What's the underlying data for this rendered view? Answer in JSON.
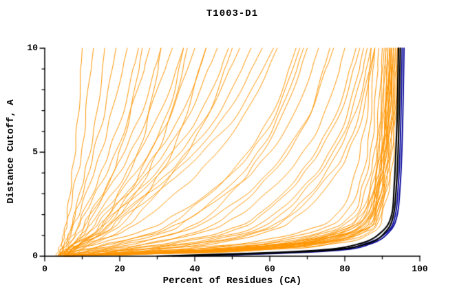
{
  "title": "T1003-D1",
  "colors": {
    "model_orange": "#FF9500",
    "reference_black": "#000000",
    "reference_navy": "#000099",
    "axis": "#000000",
    "background": "#FFFFFF"
  },
  "chart_data": {
    "type": "line",
    "title": "T1003-D1",
    "xlabel": "Percent of Residues (CA)",
    "ylabel": "Distance Cutoff, A",
    "xlim": [
      0,
      100
    ],
    "ylim": [
      0,
      10
    ],
    "grid": false,
    "legend": "none",
    "x_ticks_major": [
      0,
      20,
      40,
      60,
      80,
      100
    ],
    "x_ticks_minor": [
      10,
      30,
      50,
      70,
      90
    ],
    "y_ticks_major": [
      0,
      5,
      10
    ],
    "y_ticks_minor": [
      1,
      2,
      3,
      4,
      6,
      7,
      8,
      9
    ],
    "anchors_y": [
      0,
      0.25,
      0.6,
      1.2,
      2,
      3.5,
      5,
      7,
      10
    ],
    "groups": [
      {
        "name": "model-curves",
        "color": "#FF9500",
        "width": 1,
        "wiggle": 1.2,
        "curves": [
          [
            4,
            4.3,
            4.7,
            5.3,
            6,
            7,
            8,
            9,
            10
          ],
          [
            3,
            3.6,
            4.3,
            5.4,
            6.5,
            8,
            10,
            11,
            13
          ],
          [
            5,
            5.4,
            6,
            7,
            8,
            10,
            12,
            14,
            16
          ],
          [
            4,
            4.6,
            5.4,
            6.8,
            8,
            11,
            13,
            16,
            19
          ],
          [
            3.5,
            4.2,
            5.2,
            7,
            9,
            12,
            15,
            18,
            22
          ],
          [
            5,
            5.8,
            6.8,
            8.6,
            10,
            14,
            17,
            21,
            25
          ],
          [
            4,
            4.8,
            6,
            8.2,
            10.5,
            15,
            19,
            23,
            28
          ],
          [
            6,
            6.8,
            8,
            10.2,
            12,
            17,
            21,
            26,
            31
          ],
          [
            3.5,
            4.5,
            6.2,
            9.5,
            12,
            18,
            23,
            28,
            34
          ],
          [
            5,
            6,
            7.8,
            11,
            14,
            20,
            25,
            31,
            37
          ],
          [
            4.5,
            5.6,
            7.8,
            12,
            15,
            22,
            28,
            34,
            40
          ],
          [
            6,
            7.2,
            9.5,
            13.5,
            17,
            24,
            30,
            37,
            43
          ],
          [
            4,
            5.4,
            8,
            12.5,
            16,
            25,
            32,
            39,
            46
          ],
          [
            5.5,
            6.8,
            9.5,
            14.5,
            18,
            27,
            34,
            42,
            49
          ],
          [
            3.5,
            5,
            8,
            14,
            18.5,
            28,
            36,
            44,
            52
          ],
          [
            6,
            7.5,
            10.5,
            16.5,
            21,
            30,
            38,
            47,
            55
          ],
          [
            5,
            6.6,
            9.8,
            16,
            20,
            31,
            40,
            49,
            58
          ],
          [
            4.5,
            6.4,
            10,
            17,
            22,
            33,
            42,
            52,
            61
          ],
          [
            4,
            6,
            9.5,
            15,
            20,
            26,
            30,
            34,
            38
          ],
          [
            5,
            7,
            11.5,
            18,
            23,
            29,
            34,
            38,
            43
          ],
          [
            3.5,
            5.5,
            9,
            14,
            17,
            21,
            25,
            28,
            31
          ],
          [
            6,
            8.5,
            13,
            20,
            25,
            32,
            38,
            44,
            50
          ],
          [
            4,
            5.5,
            7.5,
            10.5,
            13,
            17,
            20,
            23,
            26
          ],
          [
            5,
            6.8,
            10,
            15.5,
            19,
            24,
            28,
            33,
            37
          ],
          [
            5,
            8,
            14,
            26,
            35,
            47,
            55,
            62,
            68
          ],
          [
            6,
            10,
            18,
            31,
            40,
            52,
            60,
            67,
            73
          ],
          [
            4.5,
            12,
            22,
            37,
            46,
            57,
            64,
            71,
            77
          ],
          [
            5.5,
            14,
            27,
            43,
            52,
            62,
            69,
            75,
            80
          ],
          [
            6,
            17,
            32,
            48,
            57,
            66,
            72,
            78,
            83
          ],
          [
            5,
            20,
            37,
            53,
            61,
            70,
            76,
            81,
            85
          ],
          [
            7,
            23,
            41,
            57,
            65,
            73,
            78,
            83,
            87
          ],
          [
            6,
            26,
            45,
            60,
            68,
            76,
            81,
            85,
            88
          ],
          [
            5,
            13,
            24,
            36,
            44,
            52,
            58,
            64,
            70
          ],
          [
            6.5,
            16,
            28,
            41,
            49,
            58,
            65,
            71,
            76
          ],
          [
            4,
            11,
            20,
            33,
            40,
            50,
            57,
            63,
            69
          ],
          [
            5.5,
            18,
            34,
            50,
            58,
            67,
            73,
            79,
            84
          ],
          [
            7,
            21,
            39,
            55,
            63,
            71,
            77,
            82,
            86
          ],
          [
            4.5,
            9,
            17,
            30,
            37,
            47,
            54,
            61,
            67
          ],
          [
            6,
            25,
            43,
            58,
            66,
            74,
            80,
            84,
            88
          ],
          [
            5,
            7.5,
            12,
            21,
            28,
            38,
            46,
            54,
            62
          ],
          [
            5,
            30,
            55,
            72,
            80,
            84,
            86,
            87,
            88
          ],
          [
            6,
            34,
            60,
            76,
            83,
            86,
            88,
            89,
            90
          ],
          [
            5.5,
            38,
            64,
            79,
            85,
            88,
            89,
            90,
            91
          ],
          [
            7,
            42,
            68,
            82,
            87,
            89,
            90,
            91,
            92
          ],
          [
            6,
            46,
            71,
            84,
            88,
            90,
            91,
            92,
            93
          ],
          [
            5,
            50,
            74,
            86,
            89,
            91,
            92,
            93,
            94
          ],
          [
            6.5,
            40,
            66,
            80.5,
            86,
            88.5,
            90,
            91,
            92
          ],
          [
            5,
            36,
            62,
            77.5,
            84,
            87,
            88.5,
            89.5,
            90.5
          ],
          [
            7,
            44,
            69,
            83,
            87.5,
            89.5,
            91,
            92,
            92.5
          ],
          [
            6,
            48,
            72.5,
            85,
            88.5,
            90.5,
            91.5,
            92.5,
            93.5
          ],
          [
            5.5,
            32,
            58,
            74.5,
            82,
            85,
            87,
            88,
            89
          ],
          [
            6,
            39,
            65,
            79.5,
            85.5,
            88,
            89.5,
            90.5,
            91.5
          ],
          [
            5,
            45,
            70,
            83.5,
            87.5,
            89.5,
            90.5,
            91.5,
            92.5
          ],
          [
            7,
            52,
            76,
            87,
            89.5,
            91.5,
            92.5,
            93.5,
            94
          ],
          [
            6,
            28,
            52,
            69,
            78,
            82,
            84,
            86,
            87
          ],
          [
            5,
            41,
            67,
            81.5,
            86.5,
            89,
            90,
            91,
            92
          ],
          [
            6.5,
            47,
            72,
            84.5,
            88,
            90,
            91,
            92,
            93
          ],
          [
            5.5,
            37,
            63,
            78.5,
            84.5,
            87.5,
            89,
            90,
            91
          ],
          [
            6,
            49,
            73.5,
            85.5,
            89,
            91,
            92,
            93,
            93.5
          ],
          [
            5,
            40,
            66,
            80,
            86,
            88.5,
            90,
            91,
            91.5
          ],
          [
            7,
            43,
            68.5,
            82.5,
            87,
            89,
            90.5,
            91.5,
            92
          ],
          [
            6,
            47.5,
            72.5,
            84.8,
            88.5,
            90.5,
            91.5,
            92.5,
            93
          ],
          [
            5.5,
            42,
            67.5,
            81.8,
            87,
            89.5,
            90.8,
            91.8,
            92.3
          ],
          [
            6,
            54,
            78,
            88,
            90,
            92,
            93,
            93.5,
            94.5
          ]
        ]
      },
      {
        "name": "reference-navy",
        "color": "#000099",
        "width": 1.8,
        "wiggle": 0,
        "curves": [
          [
            40,
            76,
            87,
            92,
            94,
            94.8,
            95.2,
            95.5,
            95.8
          ],
          [
            36,
            74,
            85.5,
            91.5,
            93.5,
            94.3,
            94.7,
            95,
            95.3
          ]
        ]
      },
      {
        "name": "reference-black",
        "color": "#000000",
        "width": 2.2,
        "wiggle": 0,
        "curves": [
          [
            30,
            70,
            84,
            90,
            92.5,
            93.2,
            93.6,
            94,
            94.3
          ],
          [
            34,
            73,
            86,
            91,
            93,
            93.8,
            94.2,
            94.5,
            94.8
          ]
        ]
      }
    ]
  }
}
